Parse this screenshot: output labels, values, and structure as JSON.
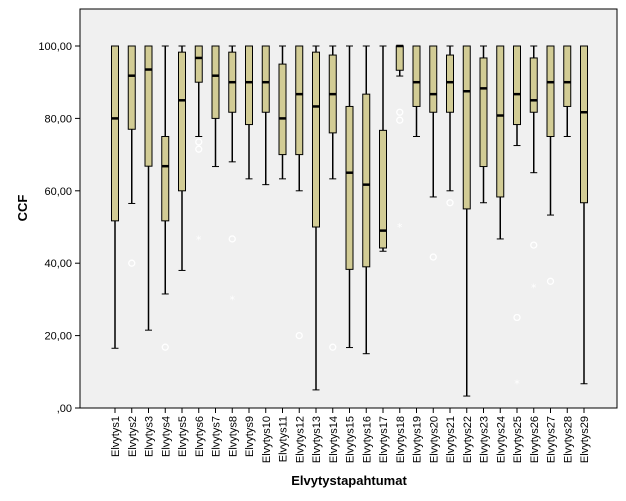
{
  "chart_data": {
    "type": "boxplot",
    "xlabel": "Elvytystapahtumat",
    "ylabel": "CCF",
    "ylim": [
      0,
      105
    ],
    "yticks": [
      0,
      20,
      40,
      60,
      80,
      100
    ],
    "ytick_labels": [
      ",00",
      "20,00",
      "40,00",
      "60,00",
      "80,00",
      "100,00"
    ],
    "grid": false,
    "legend": "none",
    "colors": {
      "plot_background": "#f0f0f0",
      "box_fill": "#d2cc95",
      "box_stroke": "#000000",
      "outlier": "#ffffff"
    },
    "categories": [
      "Elvytys1",
      "Elvytys2",
      "Elvytys3",
      "Elvytys4",
      "Elvytys5",
      "Elvytys6",
      "Elvytys7",
      "Elvytys8",
      "Elvytys9",
      "Elvytys10",
      "Elvytys11",
      "Elvytys12",
      "Elvytys13",
      "Elvytys14",
      "Elvytys15",
      "Elvytys16",
      "Elvytys17",
      "Elvytys18",
      "Elvytys19",
      "Elvytys20",
      "Elvytys21",
      "Elvytys22",
      "Elvytys23",
      "Elvytys24",
      "Elvytys25",
      "Elvytys26",
      "Elvytys27",
      "Elvytys28",
      "Elvytys29"
    ],
    "boxes": [
      {
        "min": 16.5,
        "q1": 51.7,
        "median": 80.0,
        "q3": 100,
        "max": 100,
        "outliers": []
      },
      {
        "min": 56.5,
        "q1": 77.0,
        "median": 91.8,
        "q3": 100,
        "max": 100,
        "outliers": [
          {
            "value": 40.0,
            "marker": "circle"
          }
        ]
      },
      {
        "min": 21.5,
        "q1": 66.8,
        "median": 93.5,
        "q3": 100,
        "max": 100,
        "outliers": []
      },
      {
        "min": 31.5,
        "q1": 51.7,
        "median": 66.8,
        "q3": 75.0,
        "max": 100,
        "outliers": [
          {
            "value": 16.8,
            "marker": "circle"
          }
        ]
      },
      {
        "min": 38.0,
        "q1": 60.0,
        "median": 85.0,
        "q3": 98.3,
        "max": 100,
        "outliers": []
      },
      {
        "min": 75.0,
        "q1": 90.0,
        "median": 96.7,
        "q3": 100,
        "max": 100,
        "outliers": [
          {
            "value": 73.5,
            "marker": "circle"
          },
          {
            "value": 71.5,
            "marker": "circle"
          },
          {
            "value": 46.5,
            "marker": "star"
          }
        ]
      },
      {
        "min": 66.7,
        "q1": 80.0,
        "median": 91.8,
        "q3": 100,
        "max": 100,
        "outliers": []
      },
      {
        "min": 68.0,
        "q1": 81.7,
        "median": 90.0,
        "q3": 98.3,
        "max": 100,
        "outliers": [
          {
            "value": 46.7,
            "marker": "circle"
          },
          {
            "value": 30.0,
            "marker": "star"
          }
        ]
      },
      {
        "min": 63.3,
        "q1": 78.3,
        "median": 90.0,
        "q3": 100,
        "max": 100,
        "outliers": []
      },
      {
        "min": 61.7,
        "q1": 81.7,
        "median": 90.0,
        "q3": 100,
        "max": 100,
        "outliers": []
      },
      {
        "min": 63.3,
        "q1": 70.0,
        "median": 80.0,
        "q3": 95.0,
        "max": 100,
        "outliers": []
      },
      {
        "min": 60.0,
        "q1": 70.0,
        "median": 86.7,
        "q3": 100,
        "max": 100,
        "outliers": [
          {
            "value": 20.0,
            "marker": "circle"
          }
        ]
      },
      {
        "min": 5.0,
        "q1": 50.0,
        "median": 83.3,
        "q3": 98.3,
        "max": 100,
        "outliers": []
      },
      {
        "min": 63.3,
        "q1": 76.0,
        "median": 86.7,
        "q3": 97.5,
        "max": 100,
        "outliers": [
          {
            "value": 16.8,
            "marker": "circle"
          }
        ]
      },
      {
        "min": 16.7,
        "q1": 38.3,
        "median": 65.0,
        "q3": 83.3,
        "max": 100,
        "outliers": []
      },
      {
        "min": 15.0,
        "q1": 39.0,
        "median": 61.7,
        "q3": 86.7,
        "max": 100,
        "outliers": []
      },
      {
        "min": 43.3,
        "q1": 44.2,
        "median": 49.0,
        "q3": 76.7,
        "max": 100,
        "outliers": []
      },
      {
        "min": 91.7,
        "q1": 93.3,
        "median": 100,
        "q3": 100,
        "max": 100,
        "outliers": [
          {
            "value": 81.7,
            "marker": "circle"
          },
          {
            "value": 79.5,
            "marker": "circle"
          },
          {
            "value": 50.0,
            "marker": "star"
          }
        ]
      },
      {
        "min": 75.0,
        "q1": 83.3,
        "median": 90.0,
        "q3": 100,
        "max": 100,
        "outliers": []
      },
      {
        "min": 58.3,
        "q1": 81.7,
        "median": 86.7,
        "q3": 100,
        "max": 100,
        "outliers": [
          {
            "value": 41.7,
            "marker": "circle"
          }
        ]
      },
      {
        "min": 60.0,
        "q1": 81.7,
        "median": 90.0,
        "q3": 97.5,
        "max": 100,
        "outliers": [
          {
            "value": 56.7,
            "marker": "circle"
          }
        ]
      },
      {
        "min": 3.3,
        "q1": 55.0,
        "median": 87.5,
        "q3": 100,
        "max": 100,
        "outliers": []
      },
      {
        "min": 56.7,
        "q1": 66.7,
        "median": 88.3,
        "q3": 96.7,
        "max": 100,
        "outliers": []
      },
      {
        "min": 46.7,
        "q1": 58.3,
        "median": 80.8,
        "q3": 100,
        "max": 100,
        "outliers": []
      },
      {
        "min": 72.5,
        "q1": 78.3,
        "median": 86.7,
        "q3": 100,
        "max": 100,
        "outliers": [
          {
            "value": 25.0,
            "marker": "circle"
          },
          {
            "value": 6.7,
            "marker": "star"
          }
        ]
      },
      {
        "min": 65.0,
        "q1": 81.7,
        "median": 85.0,
        "q3": 96.7,
        "max": 100,
        "outliers": [
          {
            "value": 45.0,
            "marker": "circle"
          },
          {
            "value": 33.3,
            "marker": "star"
          }
        ]
      },
      {
        "min": 53.3,
        "q1": 75.0,
        "median": 90.0,
        "q3": 100,
        "max": 100,
        "outliers": [
          {
            "value": 35.0,
            "marker": "circle"
          }
        ]
      },
      {
        "min": 75.0,
        "q1": 83.3,
        "median": 90.0,
        "q3": 100,
        "max": 100,
        "outliers": []
      },
      {
        "min": 6.7,
        "q1": 56.7,
        "median": 81.7,
        "q3": 100,
        "max": 100,
        "outliers": []
      }
    ]
  }
}
